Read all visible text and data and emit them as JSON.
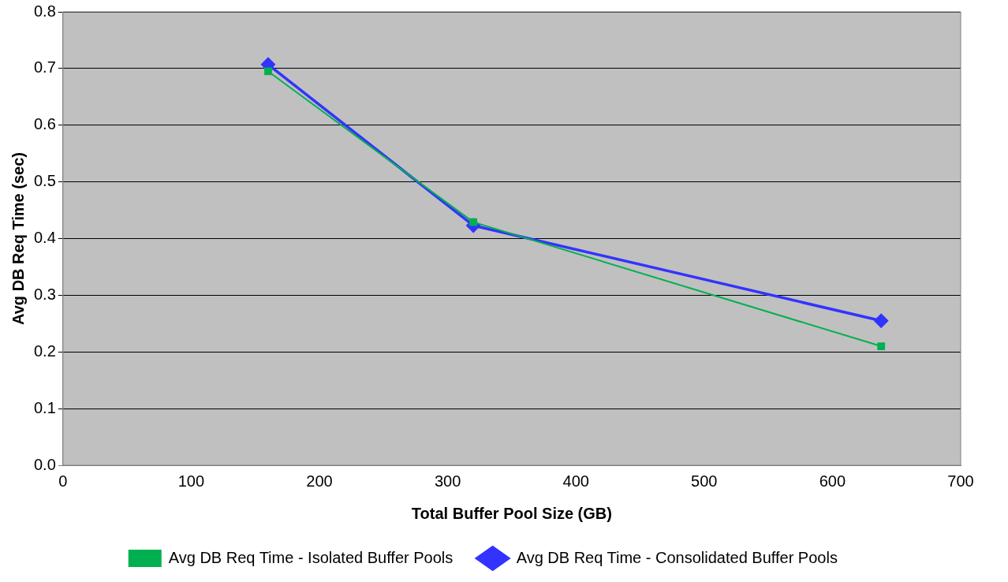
{
  "chart_data": {
    "type": "line",
    "xlabel": "Total Buffer Pool Size (GB)",
    "ylabel": "Avg DB Req Time (sec)",
    "xlim": [
      0,
      700
    ],
    "xticks": [
      0,
      100,
      200,
      300,
      400,
      500,
      600,
      700
    ],
    "ylim": [
      0,
      0.8
    ],
    "yticks": [
      {
        "value": 0,
        "label": "0.0"
      },
      0.1,
      0.2,
      0.3,
      0.4,
      0.5,
      0.6,
      0.7,
      0.8
    ],
    "grid": "y",
    "legend": "bottom",
    "series": [
      {
        "name": "Avg DB Req Time - Isolated Buffer Pools",
        "color": "#00b050",
        "marker": "square",
        "x": [
          160,
          320,
          638
        ],
        "values": [
          0.695,
          0.429,
          0.21
        ]
      },
      {
        "name": "Avg DB Req Time - Consolidated Buffer Pools",
        "color": "#3333ff",
        "marker": "diamond",
        "x": [
          160,
          320,
          638
        ],
        "values": [
          0.707,
          0.423,
          0.255
        ]
      }
    ]
  }
}
